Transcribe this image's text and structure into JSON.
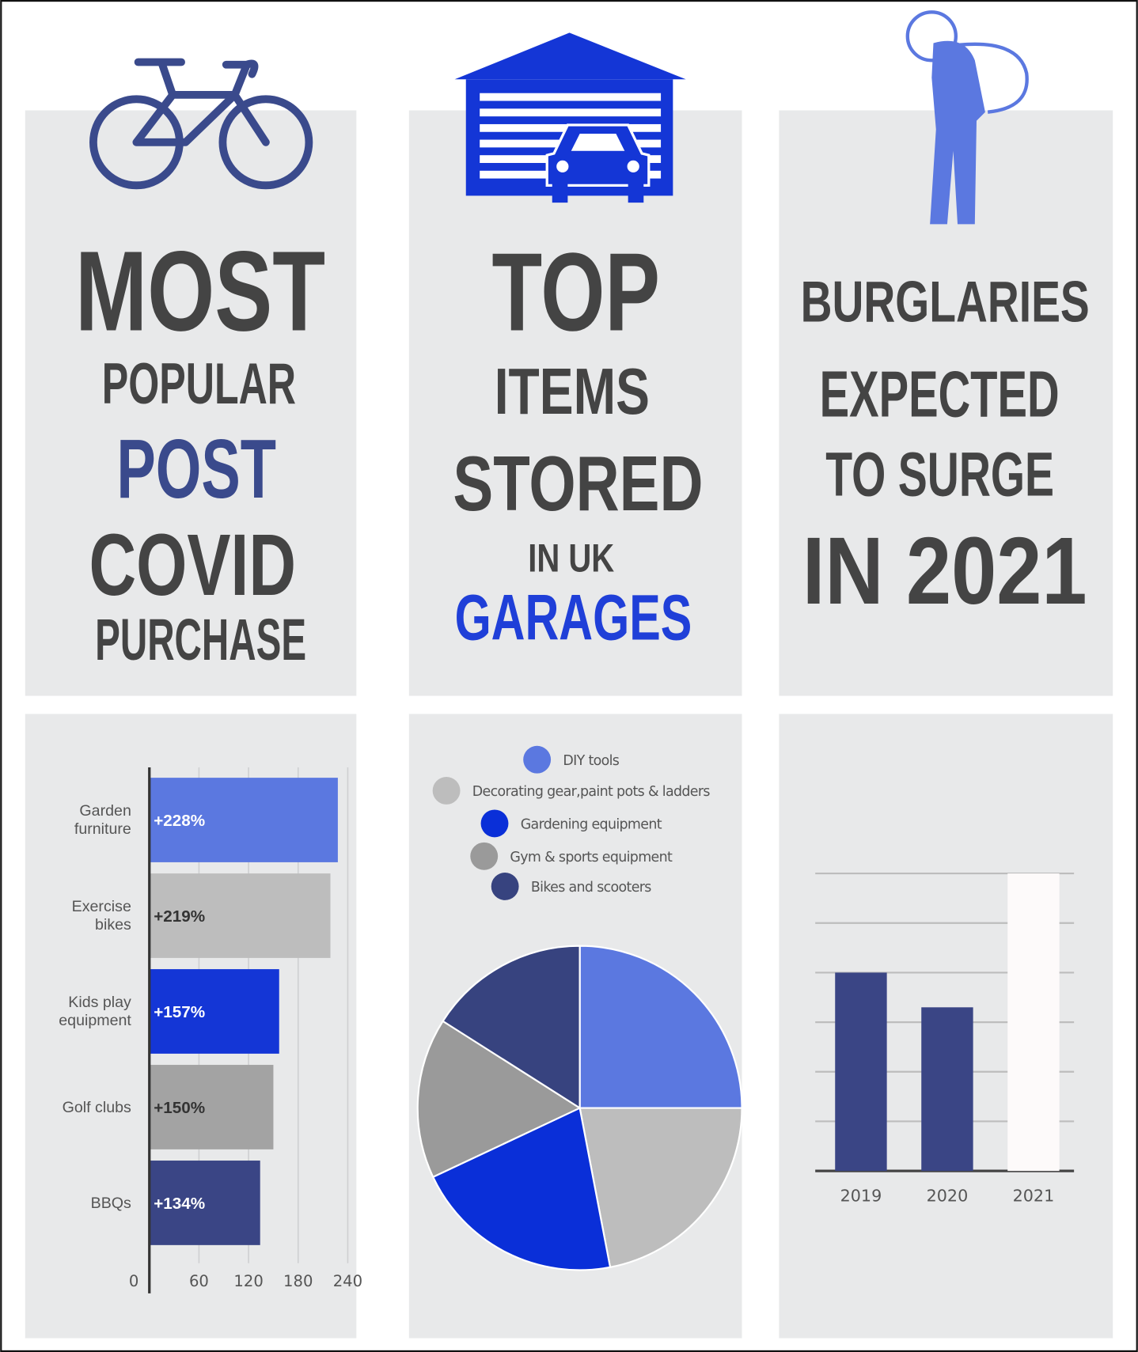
{
  "headlines": {
    "left": [
      "MOST",
      "POPULAR",
      "POST",
      "COVID",
      "PURCHASE"
    ],
    "middle": [
      "TOP",
      "ITEMS",
      "STORED",
      "IN UK",
      "GARAGES"
    ],
    "right": [
      "BURGLARIES",
      "EXPECTED",
      "TO SURGE",
      "IN 2021"
    ]
  },
  "chart_data": [
    {
      "type": "bar",
      "orientation": "horizontal",
      "categories": [
        "Garden furniture",
        "Exercise bikes",
        "Kids play equipment",
        "Golf clubs",
        "BBQs"
      ],
      "values": [
        228,
        219,
        157,
        150,
        134
      ],
      "value_labels": [
        "+228%",
        "+219%",
        "+157%",
        "+150%",
        "+134%"
      ],
      "colors": [
        "#5b78e0",
        "#bdbdbd",
        "#1436d6",
        "#a3a3a3",
        "#3a4585"
      ],
      "xlim": [
        0,
        240
      ],
      "xticks": [
        0,
        60,
        120,
        180,
        240
      ],
      "grid": true
    },
    {
      "type": "pie",
      "categories": [
        "DIY tools",
        "Decorating gear,paint pots & ladders",
        "Gardening equipment",
        "Gym & sports equipment",
        "Bikes and scooters"
      ],
      "values": [
        25,
        22,
        21,
        16,
        16
      ],
      "colors": [
        "#5b78e0",
        "#bdbdbd",
        "#0a2fd8",
        "#9a9a9a",
        "#37437f"
      ]
    },
    {
      "type": "bar",
      "categories": [
        "2019",
        "2020",
        "2021"
      ],
      "values": [
        4,
        3.3,
        6
      ],
      "colors": [
        "#3a4585",
        "#3a4585",
        "#fdfafa"
      ],
      "ylim": [
        0,
        6
      ],
      "yticks": [
        0,
        1,
        2,
        3,
        4,
        5,
        6
      ],
      "grid": true
    }
  ]
}
